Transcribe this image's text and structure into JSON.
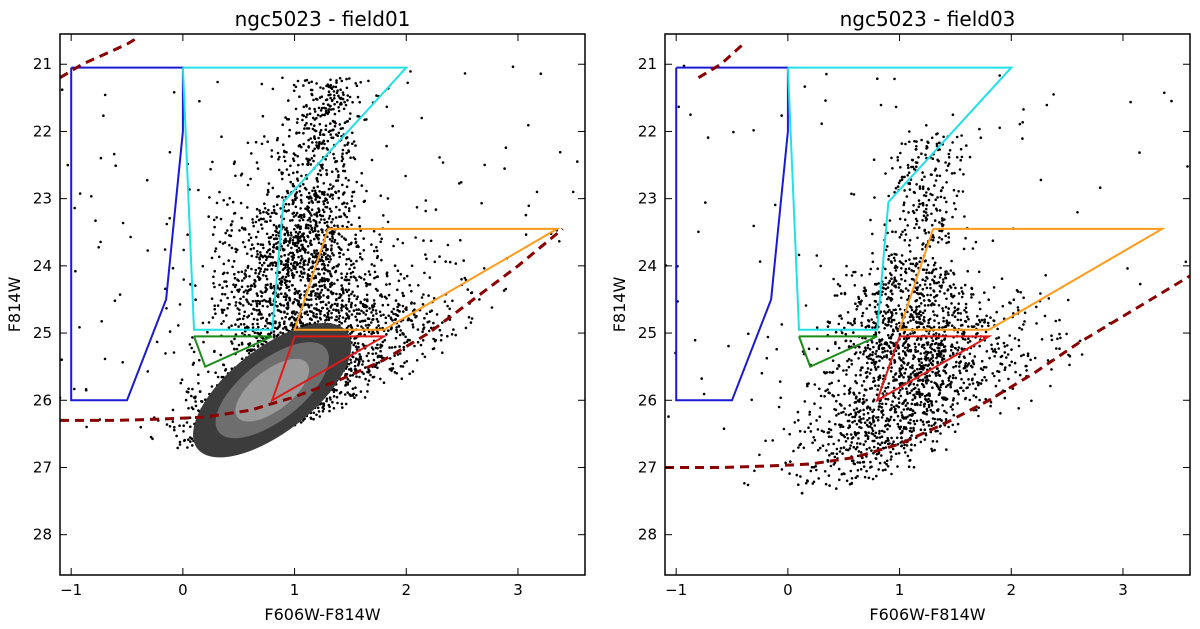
{
  "chart_data": [
    {
      "type": "scatter",
      "title": "ngc5023 - field01",
      "xlabel": "F606W-F814W",
      "ylabel": "F814W",
      "xlim": [
        -1.1,
        3.6
      ],
      "ylim": [
        28.6,
        20.55
      ],
      "y_inverted": true,
      "xticks": [
        -1,
        0,
        1,
        2,
        3
      ],
      "xtick_labels": [
        "−1",
        "0",
        "1",
        "2",
        "3"
      ],
      "yticks": [
        21,
        22,
        23,
        24,
        25,
        26,
        27,
        28
      ],
      "ytick_labels": [
        "21",
        "22",
        "23",
        "24",
        "25",
        "26",
        "27",
        "28"
      ],
      "has_density_contours": true,
      "scatter_seed": 11,
      "scatter_count": 4200,
      "density": {
        "body": {
          "center": [
            0.85,
            25.85
          ],
          "spread_color": 0.45,
          "spread_mag": 0.45
        },
        "plume": {
          "center": [
            0.95,
            24.3
          ],
          "spread_color": 0.35,
          "spread_mag": 1.4
        },
        "rgb": {
          "x_start": 1.1,
          "x_end": 1.3,
          "mag_top": 21.2,
          "mag_bottom": 24.0
        },
        "wide": {
          "center": [
            1.6,
            24.8
          ],
          "spread_color": 0.55,
          "spread_mag": 0.6
        }
      },
      "completeness_limit": {
        "name": "completeness limit",
        "color": "#8b0000",
        "x": [
          -1.1,
          -0.6,
          -0.2,
          0.2,
          0.6,
          1.0,
          1.4,
          1.8,
          2.2,
          2.6,
          3.0,
          3.4
        ],
        "y": [
          26.3,
          26.3,
          26.28,
          26.25,
          26.15,
          25.95,
          25.7,
          25.4,
          25.0,
          24.5,
          24.0,
          23.45
        ]
      },
      "upper_curve": {
        "name": "upper limit",
        "color": "#8b0000",
        "x": [
          -1.1,
          -0.9,
          -0.7,
          -0.5,
          -0.4
        ],
        "y": [
          21.2,
          21.0,
          20.85,
          20.7,
          20.6
        ]
      },
      "selection_boxes": [
        {
          "name": "blue box",
          "color": "#1a1ad4",
          "x": [
            -1.0,
            0.0,
            0.0,
            -0.15,
            -0.5,
            -1.0,
            -1.0
          ],
          "y": [
            21.05,
            21.05,
            22.0,
            24.5,
            26.0,
            26.0,
            21.05
          ]
        },
        {
          "name": "cyan box",
          "color": "#22e0e8",
          "x": [
            0.0,
            2.0,
            0.9,
            0.8,
            0.1,
            0.0
          ],
          "y": [
            21.05,
            21.05,
            23.05,
            24.95,
            24.95,
            21.05
          ]
        },
        {
          "name": "green box",
          "color": "#1b8c1b",
          "x": [
            0.1,
            0.8,
            0.2,
            0.1
          ],
          "y": [
            25.05,
            25.05,
            25.5,
            25.05
          ]
        },
        {
          "name": "orange box",
          "color": "#ff9b1a",
          "x": [
            1.3,
            3.35,
            1.8,
            1.0,
            1.3
          ],
          "y": [
            23.45,
            23.45,
            24.95,
            24.95,
            23.45
          ]
        },
        {
          "name": "red box",
          "color": "#e01a1a",
          "x": [
            1.0,
            1.8,
            0.8,
            1.0
          ],
          "y": [
            25.05,
            25.05,
            26.0,
            25.05
          ]
        }
      ]
    },
    {
      "type": "scatter",
      "title": "ngc5023 - field03",
      "xlabel": "F606W-F814W",
      "ylabel": "F814W",
      "xlim": [
        -1.1,
        3.6
      ],
      "ylim": [
        28.6,
        20.55
      ],
      "y_inverted": true,
      "xticks": [
        -1,
        0,
        1,
        2,
        3
      ],
      "xtick_labels": [
        "−1",
        "0",
        "1",
        "2",
        "3"
      ],
      "yticks": [
        21,
        22,
        23,
        24,
        25,
        26,
        27,
        28
      ],
      "ytick_labels": [
        "21",
        "22",
        "23",
        "24",
        "25",
        "26",
        "27",
        "28"
      ],
      "has_density_contours": false,
      "scatter_seed": 23,
      "scatter_count": 2200,
      "density": {
        "body": {
          "center": [
            0.95,
            26.1
          ],
          "spread_color": 0.45,
          "spread_mag": 0.55
        },
        "plume": {
          "center": [
            1.05,
            24.9
          ],
          "spread_color": 0.35,
          "spread_mag": 0.9
        },
        "rgb": {
          "x_start": 1.1,
          "x_end": 1.3,
          "mag_top": 22.0,
          "mag_bottom": 24.5
        },
        "wide": {
          "center": [
            1.4,
            25.2
          ],
          "spread_color": 0.5,
          "spread_mag": 0.5
        }
      },
      "completeness_limit": {
        "name": "completeness limit",
        "color": "#8b0000",
        "x": [
          -1.1,
          -0.6,
          -0.2,
          0.2,
          0.6,
          1.0,
          1.4,
          1.8,
          2.2,
          2.6,
          3.0,
          3.6
        ],
        "y": [
          27.0,
          27.0,
          26.98,
          26.95,
          26.85,
          26.65,
          26.35,
          26.0,
          25.6,
          25.15,
          24.75,
          24.15
        ]
      },
      "upper_curve": {
        "name": "upper limit",
        "color": "#8b0000",
        "x": [
          -0.8,
          -0.6,
          -0.5,
          -0.4
        ],
        "y": [
          21.2,
          21.0,
          20.85,
          20.7
        ]
      },
      "selection_boxes": [
        {
          "name": "blue box",
          "color": "#1a1ad4",
          "x": [
            -1.0,
            0.0,
            0.0,
            -0.15,
            -0.5,
            -1.0,
            -1.0
          ],
          "y": [
            21.05,
            21.05,
            22.0,
            24.5,
            26.0,
            26.0,
            21.05
          ]
        },
        {
          "name": "cyan box",
          "color": "#22e0e8",
          "x": [
            0.0,
            2.0,
            0.9,
            0.8,
            0.1,
            0.0
          ],
          "y": [
            21.05,
            21.05,
            23.05,
            24.95,
            24.95,
            21.05
          ]
        },
        {
          "name": "green box",
          "color": "#1b8c1b",
          "x": [
            0.1,
            0.8,
            0.2,
            0.1
          ],
          "y": [
            25.05,
            25.05,
            25.5,
            25.05
          ]
        },
        {
          "name": "orange box",
          "color": "#ff9b1a",
          "x": [
            1.3,
            3.35,
            1.8,
            1.0,
            1.3
          ],
          "y": [
            23.45,
            23.45,
            24.95,
            24.95,
            23.45
          ]
        },
        {
          "name": "red box",
          "color": "#e01a1a",
          "x": [
            1.0,
            1.8,
            0.8,
            1.0
          ],
          "y": [
            25.05,
            25.05,
            26.0,
            25.05
          ]
        }
      ]
    }
  ]
}
